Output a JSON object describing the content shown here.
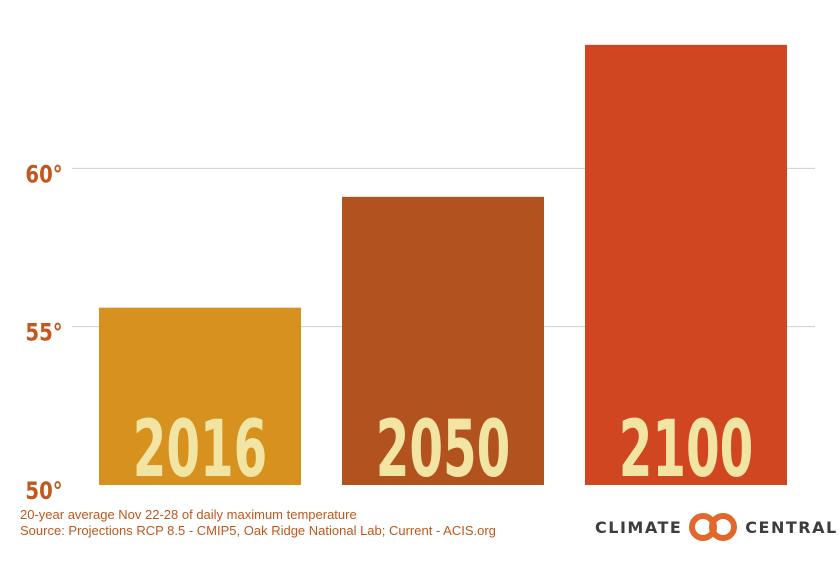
{
  "chart_data": {
    "type": "bar",
    "title": "",
    "xlabel": "",
    "ylabel": "",
    "categories": [
      "2016",
      "2050",
      "2100"
    ],
    "values": [
      55.6,
      59.1,
      63.9
    ],
    "ylim": [
      50,
      65
    ],
    "yticks": [
      50,
      55,
      60
    ],
    "ytick_labels": [
      "50°",
      "55°",
      "60°"
    ],
    "grid": true,
    "legend": "none",
    "colors": [
      "#d7911f",
      "#b2521e",
      "#cf4620"
    ],
    "category_label_color": "#f2e4a3",
    "axis_label_color": "#c3571c",
    "grid_color": "#cfcfcf"
  },
  "footnotes": {
    "line1": "20-year average Nov 22-28 of daily maximum temperature",
    "line2": "Source: Projections RCP 8.5 - CMIP5, Oak Ridge National Lab; Current - ACIS.org"
  },
  "logo": {
    "left_word": "CLIMATE",
    "right_word": "CENTRAL",
    "mark_color": "#e2672a",
    "icon": "climate-central-rings-icon"
  }
}
